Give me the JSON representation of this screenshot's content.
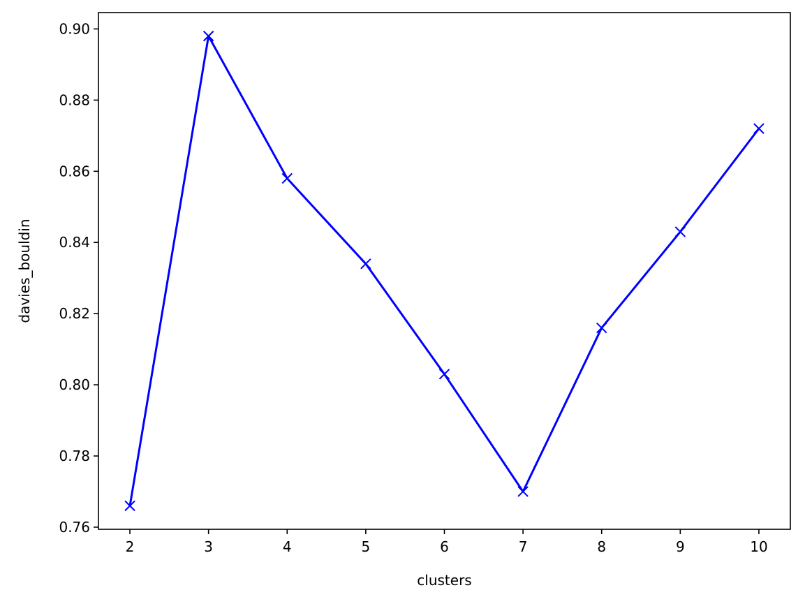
{
  "chart_data": {
    "type": "line",
    "title": "",
    "xlabel": "clusters",
    "ylabel": "davies_bouldin",
    "x": [
      2,
      3,
      4,
      5,
      6,
      7,
      8,
      9,
      10
    ],
    "series": [
      {
        "values": [
          0.766,
          0.898,
          0.858,
          0.834,
          0.803,
          0.77,
          0.816,
          0.843,
          0.872
        ],
        "color": "#0000ff",
        "marker": "x"
      }
    ],
    "xlim": [
      1.6,
      10.4
    ],
    "ylim": [
      0.7594,
      0.9046
    ],
    "xticks": [
      2,
      3,
      4,
      5,
      6,
      7,
      8,
      9,
      10
    ],
    "xtick_labels": [
      "2",
      "3",
      "4",
      "5",
      "6",
      "7",
      "8",
      "9",
      "10"
    ],
    "yticks": [
      0.76,
      0.78,
      0.8,
      0.82,
      0.84,
      0.86,
      0.88,
      0.9
    ],
    "ytick_labels": [
      "0.76",
      "0.78",
      "0.80",
      "0.82",
      "0.84",
      "0.86",
      "0.88",
      "0.90"
    ],
    "grid": false,
    "legend": "none"
  }
}
